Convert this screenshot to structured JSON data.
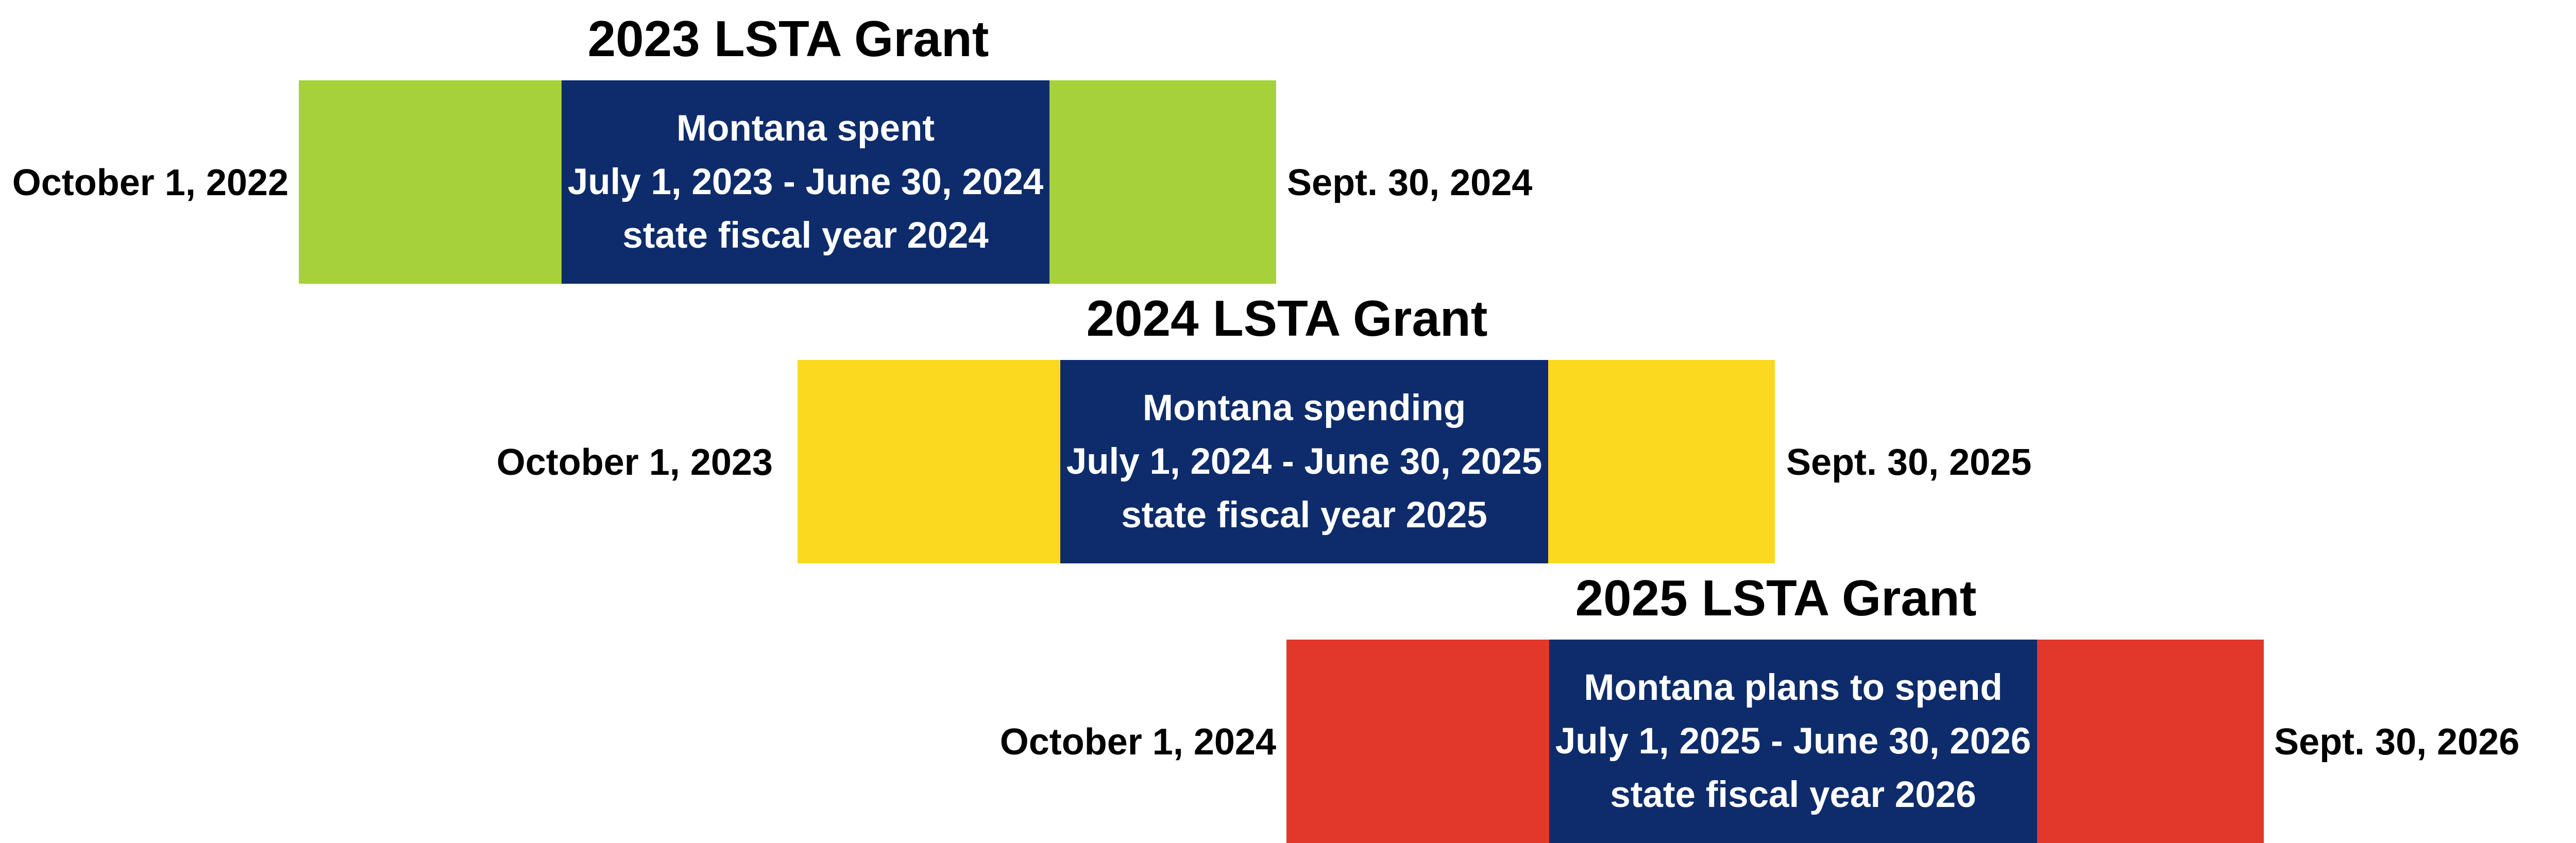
{
  "grants": [
    {
      "title": "2023 LSTA Grant",
      "start_date": "October 1, 2022",
      "end_date": "Sept. 30, 2024",
      "lines": [
        "Montana spent",
        "July 1, 2023 - June 30, 2024",
        "state fiscal year 2024"
      ],
      "color": "#a6d13a"
    },
    {
      "title": "2024 LSTA Grant",
      "start_date": "October 1, 2023",
      "end_date": "Sept. 30, 2025",
      "lines": [
        "Montana spending",
        "July 1, 2024 - June 30, 2025",
        "state fiscal year 2025"
      ],
      "color": "#fbd91f"
    },
    {
      "title": "2025 LSTA Grant",
      "start_date": "October 1, 2024",
      "end_date": "Sept. 30, 2026",
      "lines": [
        "Montana plans to spend",
        "July 1, 2025 - June 30, 2026",
        "state fiscal year 2026"
      ],
      "color": "#e2372b"
    }
  ],
  "inner_color": "#0e2c6b"
}
